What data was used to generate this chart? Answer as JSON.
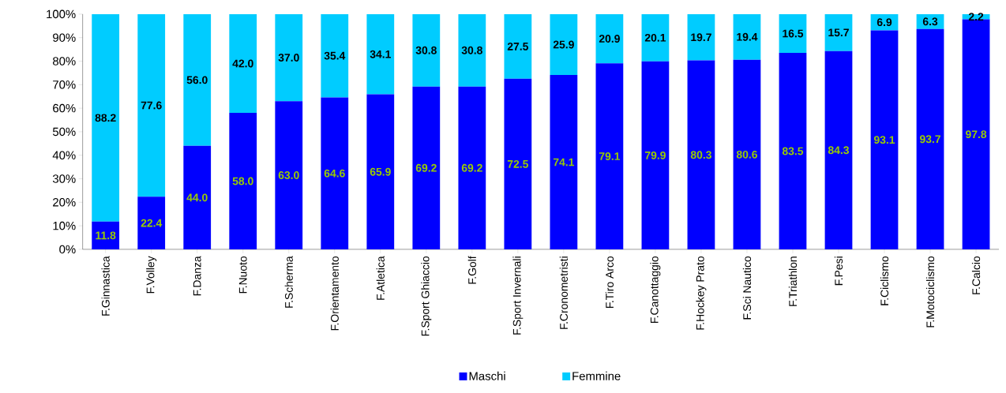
{
  "chart_data": {
    "type": "bar",
    "stacked": true,
    "categories": [
      "F.Ginnastica",
      "F.Volley",
      "F.Danza",
      "F.Nuoto",
      "F.Scherma",
      "F.Orientamento",
      "F.Atletica",
      "F.Sport Ghiaccio",
      "F.Golf",
      "F.Sport Invernali",
      "F.Cronometristi",
      "F.Tiro Arco",
      "F.Canottaggio",
      "F.Hockey Prato",
      "F.Sci Nautico",
      "F.Triathlon",
      "F.Pesi",
      "F.Ciclismo",
      "F.Motociclismo",
      "F.Calcio"
    ],
    "series": [
      {
        "name": "Maschi",
        "color": "#0000ff",
        "values": [
          11.8,
          22.4,
          44.0,
          58.0,
          63.0,
          64.6,
          65.9,
          69.2,
          69.2,
          72.5,
          74.1,
          79.1,
          79.9,
          80.3,
          80.6,
          83.5,
          84.3,
          93.1,
          93.7,
          97.8
        ],
        "value_labels": [
          "11.8",
          "22.4",
          "44.0",
          "58.0",
          "63.0",
          "64.6",
          "65.9",
          "69.2",
          "69.2",
          "72.5",
          "74.1",
          "79.1",
          "79.9",
          "80.3",
          "80.6",
          "83.5",
          "84.3",
          "93.1",
          "93.7",
          "97.8"
        ]
      },
      {
        "name": "Femmine",
        "color": "#00ccff",
        "values": [
          88.2,
          77.6,
          56.0,
          42.0,
          37.0,
          35.4,
          34.1,
          30.8,
          30.8,
          27.5,
          25.9,
          20.9,
          20.1,
          19.7,
          19.4,
          16.5,
          15.7,
          6.9,
          6.3,
          2.2
        ],
        "value_labels": [
          "88.2",
          "77.6",
          "56.0",
          "42.0",
          "37.0",
          "35.4",
          "34.1",
          "30.8",
          "30.8",
          "27.5",
          "25.9",
          "20.9",
          "20.1",
          "19.7",
          "19.4",
          "16.5",
          "15.7",
          "6.9",
          "6.3",
          "2.2"
        ]
      }
    ],
    "ylim": [
      0,
      100
    ],
    "yticks": [
      {
        "value": 0,
        "label": "0%"
      },
      {
        "value": 10,
        "label": "10%"
      },
      {
        "value": 20,
        "label": "20%"
      },
      {
        "value": 30,
        "label": "30%"
      },
      {
        "value": 40,
        "label": "40%"
      },
      {
        "value": 50,
        "label": "50%"
      },
      {
        "value": 60,
        "label": "60%"
      },
      {
        "value": 70,
        "label": "70%"
      },
      {
        "value": 80,
        "label": "80%"
      },
      {
        "value": 90,
        "label": "90%"
      },
      {
        "value": 100,
        "label": "100%"
      }
    ],
    "legend": "bottom"
  }
}
